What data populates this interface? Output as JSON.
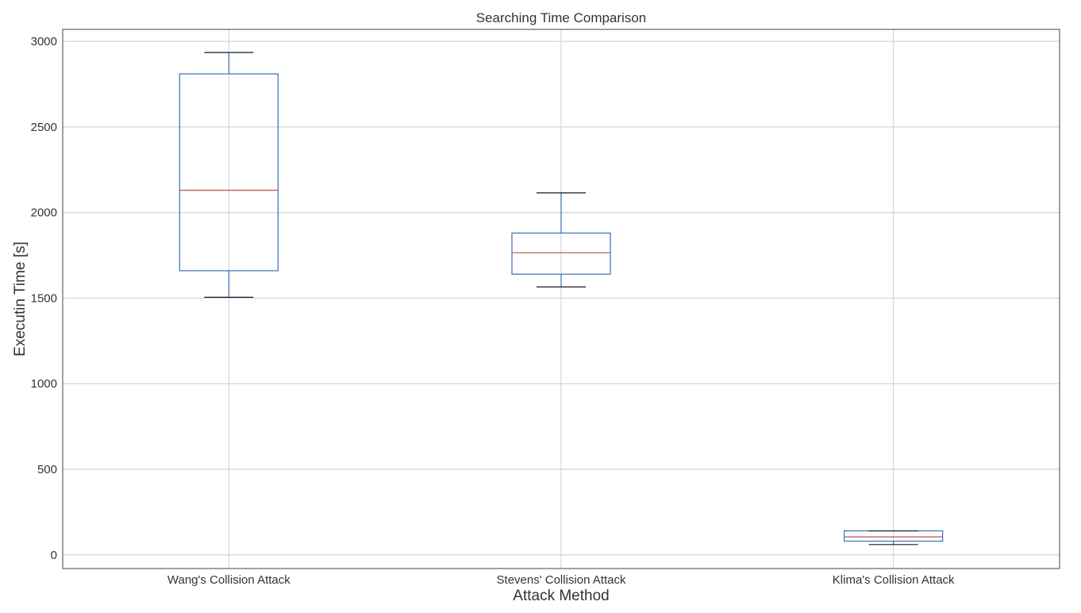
{
  "chart_data": {
    "type": "box",
    "title": "Searching Time Comparison",
    "xlabel": "Attack Method",
    "ylabel": "Executin Time [s]",
    "ylim": [
      -80,
      3070
    ],
    "yticks": [
      0,
      500,
      1000,
      1500,
      2000,
      2500,
      3000
    ],
    "grid": true,
    "categories": [
      "Wang's Collision Attack",
      "Stevens' Collision Attack",
      "Klima's Collision Attack"
    ],
    "boxes": [
      {
        "category": "Wang's Collision Attack",
        "whisker_low": 1505,
        "q1": 1660,
        "median": 2130,
        "q3": 2810,
        "whisker_high": 2935
      },
      {
        "category": "Stevens' Collision Attack",
        "whisker_low": 1565,
        "q1": 1640,
        "median": 1765,
        "q3": 1880,
        "whisker_high": 2115
      },
      {
        "category": "Klima's Collision Attack",
        "whisker_low": 60,
        "q1": 80,
        "median": 105,
        "q3": 140,
        "whisker_high": 140
      }
    ],
    "colors": {
      "box": "#3a6fbf",
      "whisker": "#3a6fbf",
      "cap": "#1a1a1a",
      "median": "#c0504d",
      "grid": "#d4d4d4",
      "frame": "#5f6368"
    }
  }
}
